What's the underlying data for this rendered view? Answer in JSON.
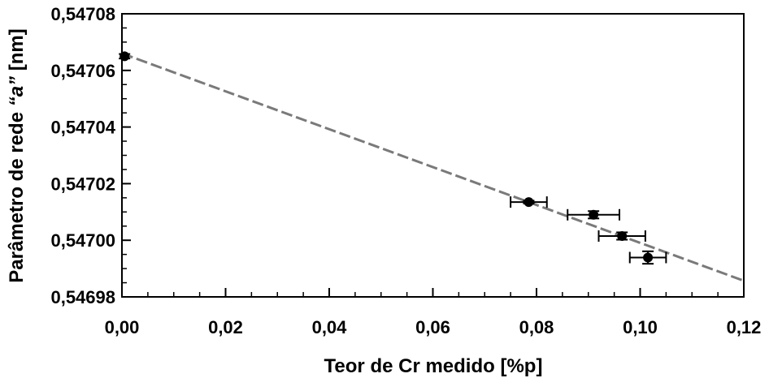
{
  "chart_data": {
    "type": "scatter",
    "title": "",
    "xlabel": "Teor de Cr medido [%p]",
    "ylabel_parts": [
      "Parâmetro de rede ",
      "“a”",
      " [nm]"
    ],
    "xlim": [
      0.0,
      0.12
    ],
    "ylim": [
      0.54698,
      0.54708
    ],
    "x_ticks": [
      0.0,
      0.02,
      0.04,
      0.06,
      0.08,
      0.1,
      0.12
    ],
    "x_tick_labels": [
      "0,00",
      "0,02",
      "0,04",
      "0,06",
      "0,08",
      "0,10",
      "0,12"
    ],
    "x_minor_step": 0.005,
    "y_ticks": [
      0.54698,
      0.547,
      0.54702,
      0.54704,
      0.54706,
      0.54708
    ],
    "y_tick_labels": [
      "0,54698",
      "0,54700",
      "0,54702",
      "0,54704",
      "0,54706",
      "0,54708"
    ],
    "y_minor_step": 5e-06,
    "grid": false,
    "points": [
      {
        "x": 0.0005,
        "y": 0.547065,
        "xerr": 0.0,
        "yerr": 8e-07
      },
      {
        "x": 0.0785,
        "y": 0.5470135,
        "xerr": 0.0035,
        "yerr": 5e-07
      },
      {
        "x": 0.091,
        "y": 0.547009,
        "xerr": 0.005,
        "yerr": 1.3e-06
      },
      {
        "x": 0.0965,
        "y": 0.5470015,
        "xerr": 0.0045,
        "yerr": 1.3e-06
      },
      {
        "x": 0.1015,
        "y": 0.5469939,
        "xerr": 0.0035,
        "yerr": 2.2e-06
      }
    ],
    "fit_line": {
      "style": "dashed",
      "x": [
        0.0,
        0.12
      ],
      "y": [
        0.547066,
        0.5469857
      ]
    },
    "colors": {
      "points": "#000000",
      "fit_line": "#7a7a7a",
      "axes": "#000000"
    }
  }
}
